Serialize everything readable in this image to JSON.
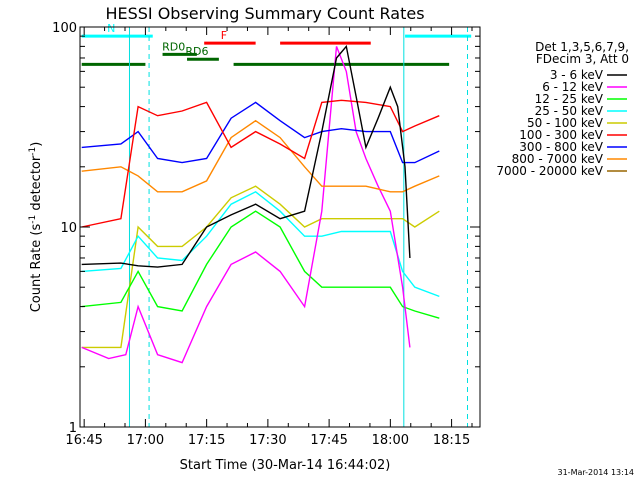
{
  "chart_data": {
    "type": "line",
    "title": "HESSI Observing Summary Count Rates",
    "xlabel": "Start Time (30-Mar-14 16:44:02)",
    "ylabel": "Count Rate (s⁻¹ detector⁻¹)",
    "ylabel_main": "Count Rate (s",
    "ylabel_sup1": "-1",
    "ylabel_mid": " detector",
    "ylabel_sup2": "-1",
    "ylabel_end": ")",
    "y_scale": "log",
    "ylim": [
      1,
      100
    ],
    "xlim": [
      16.733,
      18.366
    ],
    "x_ticks": [
      {
        "x": 16.75,
        "label": "16:45"
      },
      {
        "x": 17.0,
        "label": "17:00"
      },
      {
        "x": 17.25,
        "label": "17:15"
      },
      {
        "x": 17.5,
        "label": "17:30"
      },
      {
        "x": 17.75,
        "label": "17:45"
      },
      {
        "x": 18.0,
        "label": "18:00"
      },
      {
        "x": 18.25,
        "label": "18:15"
      }
    ],
    "y_ticks": [
      {
        "y": 1,
        "label": "1"
      },
      {
        "y": 10,
        "label": "10"
      },
      {
        "y": 100,
        "label": "100"
      }
    ],
    "legend_title_1": "Det 1,3,5,6,7,9,",
    "legend_title_2": "FDecim 3, Att 0",
    "legend_position": "top-right-outside",
    "timestamp": "31-Mar-2014 13:14",
    "series": [
      {
        "name": "3 - 6 keV",
        "color": "#000000",
        "x": [
          16.74,
          16.9,
          16.97,
          17.05,
          17.15,
          17.25,
          17.35,
          17.45,
          17.55,
          17.65,
          17.72,
          17.78,
          17.82,
          17.86,
          17.9,
          17.95,
          18.0,
          18.03,
          18.06,
          18.08
        ],
        "y": [
          6.5,
          6.6,
          6.4,
          6.3,
          6.5,
          10.0,
          11.5,
          13.0,
          11.0,
          12.0,
          30.0,
          70.0,
          80.0,
          45.0,
          25.0,
          35.0,
          50.0,
          40.0,
          20.0,
          7.0
        ]
      },
      {
        "name": "6 - 12 keV",
        "color": "#ff00ff",
        "x": [
          16.74,
          16.85,
          16.92,
          16.97,
          17.05,
          17.15,
          17.25,
          17.35,
          17.45,
          17.55,
          17.65,
          17.72,
          17.78,
          17.82,
          17.86,
          17.9,
          17.95,
          18.0,
          18.05,
          18.08
        ],
        "y": [
          2.5,
          2.2,
          2.3,
          4.0,
          2.3,
          2.1,
          4.0,
          6.5,
          7.5,
          6.0,
          4.0,
          12.0,
          80.0,
          60.0,
          30.0,
          22.0,
          16.0,
          12.0,
          5.0,
          2.5
        ]
      },
      {
        "name": "12 - 25 keV",
        "color": "#00ff00",
        "x": [
          16.74,
          16.9,
          16.97,
          17.05,
          17.15,
          17.25,
          17.35,
          17.45,
          17.55,
          17.65,
          17.72,
          17.8,
          17.9,
          18.0,
          18.05,
          18.1,
          18.2
        ],
        "y": [
          4.0,
          4.2,
          6.0,
          4.0,
          3.8,
          6.5,
          10.0,
          12.0,
          10.0,
          6.0,
          5.0,
          5.0,
          5.0,
          5.0,
          4.0,
          3.8,
          3.5
        ]
      },
      {
        "name": "25 - 50 keV",
        "color": "#00ffff",
        "x": [
          16.74,
          16.9,
          16.97,
          17.05,
          17.15,
          17.25,
          17.35,
          17.45,
          17.55,
          17.65,
          17.72,
          17.8,
          17.9,
          18.0,
          18.05,
          18.1,
          18.2
        ],
        "y": [
          6.0,
          6.2,
          9.0,
          7.0,
          6.8,
          9.0,
          13.0,
          15.0,
          12.0,
          9.0,
          9.0,
          9.5,
          9.5,
          9.5,
          6.0,
          5.0,
          4.5
        ]
      },
      {
        "name": "50 - 100 keV",
        "color": "#cccc00",
        "x": [
          16.74,
          16.9,
          16.97,
          17.05,
          17.15,
          17.25,
          17.35,
          17.45,
          17.55,
          17.65,
          17.72,
          17.8,
          17.9,
          18.0,
          18.05,
          18.1,
          18.2
        ],
        "y": [
          2.5,
          2.5,
          10.0,
          8.0,
          8.0,
          10.0,
          14.0,
          16.0,
          13.0,
          10.0,
          11.0,
          11.0,
          11.0,
          11.0,
          11.0,
          10.0,
          12.0
        ]
      },
      {
        "name": "100 - 300 keV",
        "color": "#ff0000",
        "x": [
          16.74,
          16.9,
          16.97,
          17.05,
          17.15,
          17.25,
          17.35,
          17.45,
          17.55,
          17.65,
          17.72,
          17.8,
          17.9,
          18.0,
          18.05,
          18.1,
          18.2
        ],
        "y": [
          10.0,
          11.0,
          40.0,
          36.0,
          38.0,
          42.0,
          25.0,
          30.0,
          26.0,
          22.0,
          42.0,
          43.0,
          42.0,
          40.0,
          30.0,
          32.0,
          36.0
        ]
      },
      {
        "name": "300 - 800 keV",
        "color": "#0000ff",
        "x": [
          16.74,
          16.9,
          16.97,
          17.05,
          17.15,
          17.25,
          17.35,
          17.45,
          17.55,
          17.65,
          17.72,
          17.8,
          17.9,
          18.0,
          18.05,
          18.1,
          18.2
        ],
        "y": [
          25.0,
          26.0,
          30.0,
          22.0,
          21.0,
          22.0,
          35.0,
          42.0,
          34.0,
          28.0,
          30.0,
          31.0,
          30.0,
          30.0,
          21.0,
          21.0,
          24.0
        ]
      },
      {
        "name": "800 - 7000 keV",
        "color": "#ff8800",
        "x": [
          16.74,
          16.9,
          16.97,
          17.05,
          17.15,
          17.25,
          17.35,
          17.45,
          17.55,
          17.65,
          17.72,
          17.8,
          17.9,
          18.0,
          18.05,
          18.1,
          18.2
        ],
        "y": [
          19.0,
          20.0,
          18.0,
          15.0,
          15.0,
          17.0,
          28.0,
          34.0,
          28.0,
          20.0,
          16.0,
          16.0,
          16.0,
          15.0,
          15.0,
          16.0,
          18.0
        ]
      },
      {
        "name": "7000 - 20000 keV",
        "color": "#996600",
        "x": [],
        "y": []
      }
    ],
    "annotations": [
      {
        "label": "N",
        "color": "#00ffff",
        "x_start": 16.74,
        "x_end": 17.03,
        "y": 90
      },
      {
        "label": "",
        "color": "#00ffff",
        "x_start": 18.06,
        "x_end": 18.33,
        "y": 90
      },
      {
        "label": "F",
        "color": "#ff0000",
        "x_start": 17.24,
        "x_end": 17.45,
        "y": 83
      },
      {
        "label": "",
        "color": "#ff0000",
        "x_start": 17.55,
        "x_end": 17.92,
        "y": 83
      },
      {
        "label": "RD0",
        "color": "#006600",
        "x_start": 17.07,
        "x_end": 17.21,
        "y": 73
      },
      {
        "label": "RD6",
        "color": "#006600",
        "x_start": 17.17,
        "x_end": 17.3,
        "y": 69
      },
      {
        "label": "",
        "color": "#006600",
        "x_start": 16.74,
        "x_end": 17.0,
        "y": 65
      },
      {
        "label": "",
        "color": "#006600",
        "x_start": 17.36,
        "x_end": 18.24,
        "y": 65
      }
    ],
    "vertical_lines_solid": [
      16.935,
      18.055
    ],
    "vertical_lines_dashed": [
      17.015,
      18.315
    ]
  }
}
